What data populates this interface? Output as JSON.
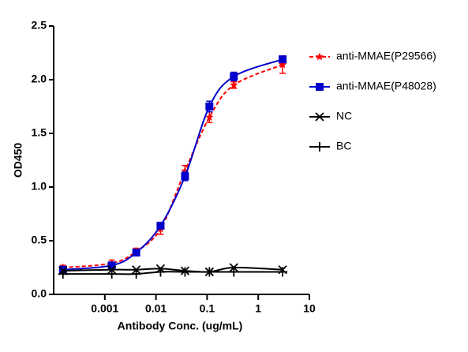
{
  "chart_data": {
    "type": "scatter",
    "xlabel": "Antibody Conc. (ug/mL)",
    "ylabel": "OD450",
    "x": [
      0.000152,
      0.00137,
      0.00412,
      0.0123,
      0.037,
      0.111,
      0.333,
      3
    ],
    "xscale": "log",
    "xlim": [
      0.0001,
      10
    ],
    "xticks": [
      0.001,
      0.01,
      0.1,
      1,
      10
    ],
    "ylim": [
      0,
      2.5
    ],
    "yticks": [
      {
        "value": 0,
        "label": "0.0"
      },
      {
        "value": 0.5,
        "label": "0.5"
      },
      {
        "value": 1,
        "label": "1.0"
      },
      {
        "value": 1.5,
        "label": "1.5"
      },
      {
        "value": 2,
        "label": "2.0"
      },
      {
        "value": 2.5,
        "label": "2.5"
      }
    ],
    "series": [
      {
        "name": "anti-MMAE(P29566)",
        "color": "#ff0000",
        "marker": "star",
        "line": "dashed",
        "values": [
          0.25,
          0.29,
          0.4,
          0.61,
          1.15,
          1.65,
          1.95,
          2.14
        ],
        "errors": [
          0.02,
          0.03,
          0.03,
          0.05,
          0.05,
          0.05,
          0.03,
          0.08
        ]
      },
      {
        "name": "anti-MMAE(P48028)",
        "color": "#0000cc",
        "marker": "square",
        "line": "solid",
        "values": [
          0.23,
          0.27,
          0.39,
          0.64,
          1.1,
          1.75,
          2.03,
          2.19
        ],
        "errors": [
          0.01,
          0.02,
          0.02,
          0.03,
          0.04,
          0.05,
          0.04,
          0.03
        ]
      },
      {
        "name": "NC",
        "color": "#000000",
        "marker": "x",
        "line": "solid",
        "values": [
          0.22,
          0.23,
          0.23,
          0.24,
          0.22,
          0.21,
          0.25,
          0.23
        ]
      },
      {
        "name": "BC",
        "color": "#000000",
        "marker": "plus",
        "line": "solid",
        "values": [
          0.19,
          0.19,
          0.19,
          0.21,
          0.21,
          0.21,
          0.21,
          0.21
        ]
      }
    ]
  }
}
